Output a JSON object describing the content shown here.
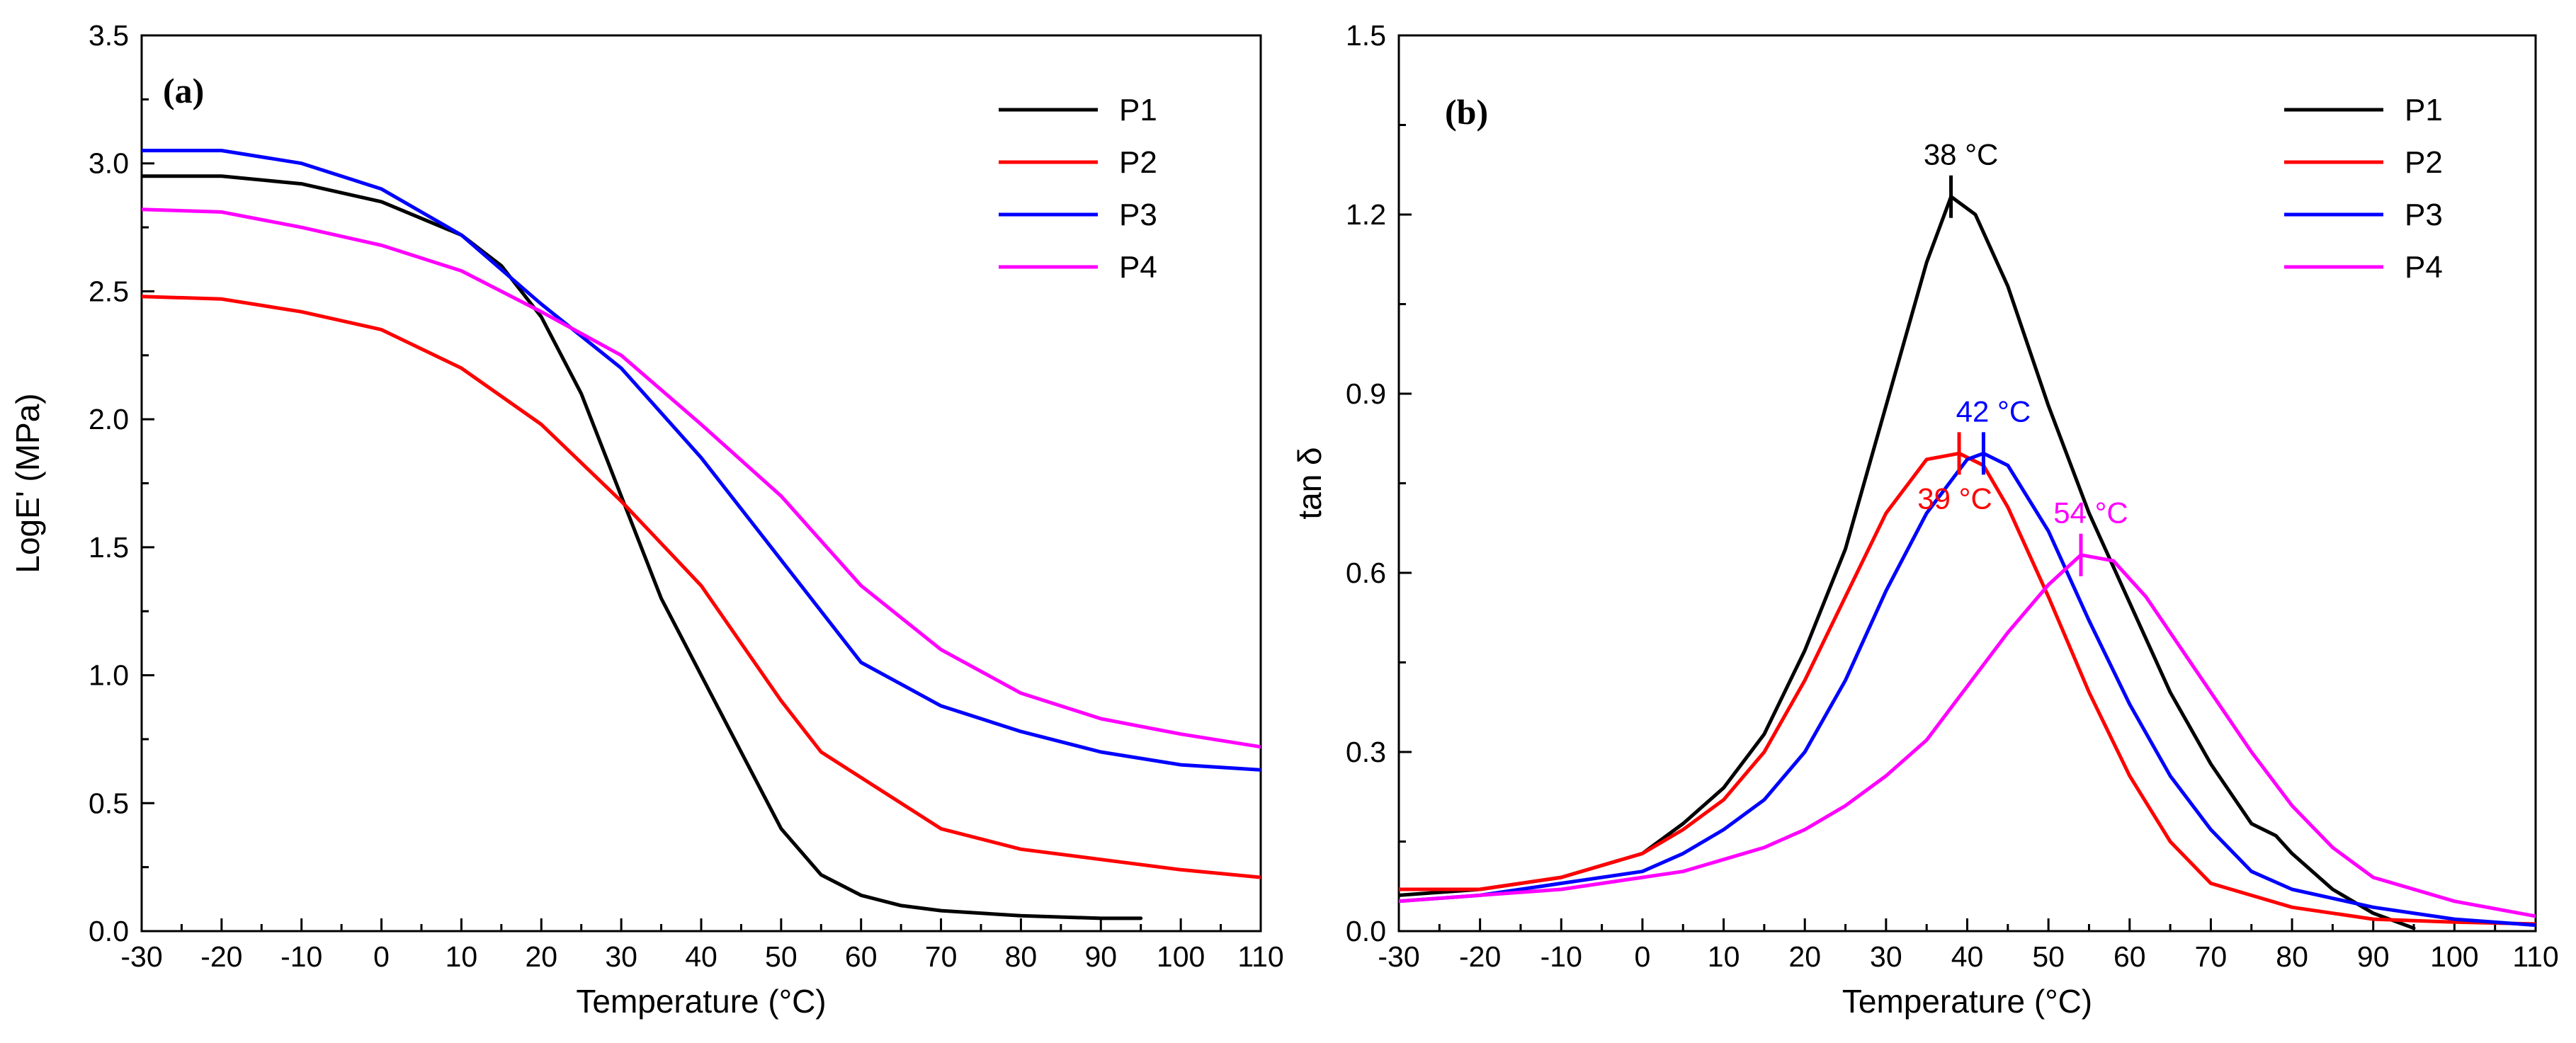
{
  "chart_data": [
    {
      "panel_label": "(a)",
      "type": "line",
      "xlabel": "Temperature (°C)",
      "ylabel": "LogE' (MPa)",
      "xlim": [
        -30,
        110
      ],
      "ylim": [
        0.0,
        3.5
      ],
      "x_ticks": [
        "-30",
        "-20",
        "-10",
        "0",
        "10",
        "20",
        "30",
        "40",
        "50",
        "60",
        "70",
        "80",
        "90",
        "100",
        "110"
      ],
      "y_ticks": [
        "0.0",
        "0.5",
        "1.0",
        "1.5",
        "2.0",
        "2.5",
        "3.0",
        "3.5"
      ],
      "legend_position": "top-right",
      "series": [
        {
          "name": "P1",
          "color": "#000000",
          "points": [
            [
              -30,
              2.95
            ],
            [
              -20,
              2.95
            ],
            [
              -10,
              2.92
            ],
            [
              0,
              2.85
            ],
            [
              10,
              2.72
            ],
            [
              15,
              2.6
            ],
            [
              20,
              2.4
            ],
            [
              25,
              2.1
            ],
            [
              30,
              1.7
            ],
            [
              35,
              1.3
            ],
            [
              40,
              1.0
            ],
            [
              45,
              0.7
            ],
            [
              50,
              0.4
            ],
            [
              55,
              0.22
            ],
            [
              60,
              0.14
            ],
            [
              65,
              0.1
            ],
            [
              70,
              0.08
            ],
            [
              80,
              0.06
            ],
            [
              90,
              0.05
            ],
            [
              95,
              0.05
            ]
          ]
        },
        {
          "name": "P2",
          "color": "#ff0000",
          "points": [
            [
              -30,
              2.48
            ],
            [
              -20,
              2.47
            ],
            [
              -10,
              2.42
            ],
            [
              0,
              2.35
            ],
            [
              10,
              2.2
            ],
            [
              20,
              1.98
            ],
            [
              30,
              1.68
            ],
            [
              40,
              1.35
            ],
            [
              50,
              0.9
            ],
            [
              55,
              0.7
            ],
            [
              60,
              0.6
            ],
            [
              70,
              0.4
            ],
            [
              80,
              0.32
            ],
            [
              90,
              0.28
            ],
            [
              100,
              0.24
            ],
            [
              110,
              0.21
            ]
          ]
        },
        {
          "name": "P3",
          "color": "#0000ff",
          "points": [
            [
              -30,
              3.05
            ],
            [
              -20,
              3.05
            ],
            [
              -10,
              3.0
            ],
            [
              0,
              2.9
            ],
            [
              10,
              2.72
            ],
            [
              20,
              2.45
            ],
            [
              30,
              2.2
            ],
            [
              40,
              1.85
            ],
            [
              50,
              1.45
            ],
            [
              55,
              1.25
            ],
            [
              60,
              1.05
            ],
            [
              70,
              0.88
            ],
            [
              80,
              0.78
            ],
            [
              90,
              0.7
            ],
            [
              100,
              0.65
            ],
            [
              110,
              0.63
            ]
          ]
        },
        {
          "name": "P4",
          "color": "#ff00ff",
          "points": [
            [
              -30,
              2.82
            ],
            [
              -20,
              2.81
            ],
            [
              -10,
              2.75
            ],
            [
              0,
              2.68
            ],
            [
              10,
              2.58
            ],
            [
              20,
              2.42
            ],
            [
              30,
              2.25
            ],
            [
              40,
              1.98
            ],
            [
              50,
              1.7
            ],
            [
              60,
              1.35
            ],
            [
              70,
              1.1
            ],
            [
              80,
              0.93
            ],
            [
              90,
              0.83
            ],
            [
              100,
              0.77
            ],
            [
              110,
              0.72
            ]
          ]
        }
      ]
    },
    {
      "panel_label": "(b)",
      "type": "line",
      "xlabel": "Temperature (°C)",
      "ylabel": "tan δ",
      "xlim": [
        -30,
        110
      ],
      "ylim": [
        0.0,
        1.5
      ],
      "x_ticks": [
        "-30",
        "-20",
        "-10",
        "0",
        "10",
        "20",
        "30",
        "40",
        "50",
        "60",
        "70",
        "80",
        "90",
        "100",
        "110"
      ],
      "y_ticks": [
        "0.0",
        "0.3",
        "0.6",
        "0.9",
        "1.2",
        "1.5"
      ],
      "legend_position": "top-right",
      "series": [
        {
          "name": "P1",
          "color": "#000000",
          "points": [
            [
              -30,
              0.06
            ],
            [
              -20,
              0.07
            ],
            [
              -10,
              0.09
            ],
            [
              0,
              0.13
            ],
            [
              5,
              0.18
            ],
            [
              10,
              0.24
            ],
            [
              15,
              0.33
            ],
            [
              20,
              0.47
            ],
            [
              25,
              0.64
            ],
            [
              30,
              0.88
            ],
            [
              35,
              1.12
            ],
            [
              38,
              1.23
            ],
            [
              41,
              1.2
            ],
            [
              45,
              1.08
            ],
            [
              50,
              0.88
            ],
            [
              55,
              0.7
            ],
            [
              60,
              0.55
            ],
            [
              65,
              0.4
            ],
            [
              70,
              0.28
            ],
            [
              75,
              0.18
            ],
            [
              78,
              0.16
            ],
            [
              80,
              0.13
            ],
            [
              85,
              0.07
            ],
            [
              90,
              0.03
            ],
            [
              95,
              0.005
            ]
          ]
        },
        {
          "name": "P2",
          "color": "#ff0000",
          "points": [
            [
              -30,
              0.07
            ],
            [
              -20,
              0.07
            ],
            [
              -10,
              0.09
            ],
            [
              0,
              0.13
            ],
            [
              5,
              0.17
            ],
            [
              10,
              0.22
            ],
            [
              15,
              0.3
            ],
            [
              20,
              0.42
            ],
            [
              25,
              0.56
            ],
            [
              30,
              0.7
            ],
            [
              35,
              0.79
            ],
            [
              39,
              0.8
            ],
            [
              42,
              0.78
            ],
            [
              45,
              0.71
            ],
            [
              50,
              0.56
            ],
            [
              55,
              0.4
            ],
            [
              60,
              0.26
            ],
            [
              65,
              0.15
            ],
            [
              70,
              0.08
            ],
            [
              80,
              0.04
            ],
            [
              90,
              0.02
            ],
            [
              100,
              0.015
            ],
            [
              110,
              0.012
            ]
          ]
        },
        {
          "name": "P3",
          "color": "#0000ff",
          "points": [
            [
              -30,
              0.05
            ],
            [
              -20,
              0.06
            ],
            [
              -10,
              0.08
            ],
            [
              0,
              0.1
            ],
            [
              5,
              0.13
            ],
            [
              10,
              0.17
            ],
            [
              15,
              0.22
            ],
            [
              20,
              0.3
            ],
            [
              25,
              0.42
            ],
            [
              30,
              0.57
            ],
            [
              35,
              0.7
            ],
            [
              40,
              0.79
            ],
            [
              42,
              0.8
            ],
            [
              45,
              0.78
            ],
            [
              50,
              0.67
            ],
            [
              55,
              0.52
            ],
            [
              60,
              0.38
            ],
            [
              65,
              0.26
            ],
            [
              70,
              0.17
            ],
            [
              75,
              0.1
            ],
            [
              80,
              0.07
            ],
            [
              90,
              0.04
            ],
            [
              100,
              0.02
            ],
            [
              110,
              0.01
            ]
          ]
        },
        {
          "name": "P4",
          "color": "#ff00ff",
          "points": [
            [
              -30,
              0.05
            ],
            [
              -20,
              0.06
            ],
            [
              -10,
              0.07
            ],
            [
              0,
              0.09
            ],
            [
              5,
              0.1
            ],
            [
              10,
              0.12
            ],
            [
              15,
              0.14
            ],
            [
              20,
              0.17
            ],
            [
              25,
              0.21
            ],
            [
              30,
              0.26
            ],
            [
              35,
              0.32
            ],
            [
              40,
              0.41
            ],
            [
              45,
              0.5
            ],
            [
              50,
              0.58
            ],
            [
              54,
              0.63
            ],
            [
              58,
              0.62
            ],
            [
              62,
              0.56
            ],
            [
              65,
              0.5
            ],
            [
              70,
              0.4
            ],
            [
              75,
              0.3
            ],
            [
              80,
              0.21
            ],
            [
              85,
              0.14
            ],
            [
              90,
              0.09
            ],
            [
              100,
              0.05
            ],
            [
              110,
              0.025
            ]
          ]
        }
      ],
      "annotations": [
        {
          "label": "38 °C",
          "series": "P1",
          "x": 38,
          "y": 1.23,
          "color": "#000000",
          "text_side": "above"
        },
        {
          "label": "39 °C",
          "series": "P2",
          "x": 39,
          "y": 0.8,
          "color": "#ff0000",
          "text_side": "below"
        },
        {
          "label": "42 °C",
          "series": "P3",
          "x": 42,
          "y": 0.8,
          "color": "#0000ff",
          "text_side": "above"
        },
        {
          "label": "54 °C",
          "series": "P4",
          "x": 54,
          "y": 0.63,
          "color": "#ff00ff",
          "text_side": "above"
        }
      ]
    }
  ]
}
